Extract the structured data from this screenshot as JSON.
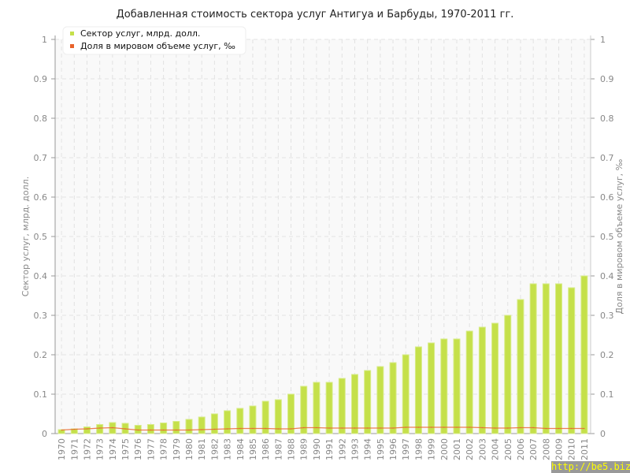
{
  "chart_data": {
    "type": "bar+line",
    "title": "Добавленная стоимость сектора услуг Антигуа и Барбуды, 1970-2011 гг.",
    "ylabel": "Сектор услуг, млрд. долл.",
    "y2label": "Доля в мировом объеме услуг, ‰",
    "ylim": [
      0,
      1
    ],
    "y2lim": [
      0,
      1
    ],
    "yticks": [
      "0",
      "0.1",
      "0.2",
      "0.3",
      "0.4",
      "0.5",
      "0.6",
      "0.7",
      "0.8",
      "0.9",
      "1"
    ],
    "grid": true,
    "legend": "top-left",
    "colors": {
      "bars": "#c5e04a",
      "line": "#e8622a"
    },
    "categories": [
      "1970",
      "1971",
      "1972",
      "1973",
      "1974",
      "1975",
      "1976",
      "1977",
      "1978",
      "1979",
      "1980",
      "1981",
      "1982",
      "1983",
      "1984",
      "1985",
      "1986",
      "1987",
      "1988",
      "1989",
      "1990",
      "1991",
      "1992",
      "1993",
      "1994",
      "1995",
      "1996",
      "1997",
      "1998",
      "1999",
      "2000",
      "2001",
      "2002",
      "2003",
      "2004",
      "2005",
      "2006",
      "2007",
      "2008",
      "2009",
      "2010",
      "2011"
    ],
    "series": [
      {
        "name": "Сектор услуг, млрд. долл.",
        "type": "bar",
        "values": [
          0.01,
          0.012,
          0.017,
          0.023,
          0.028,
          0.026,
          0.021,
          0.023,
          0.027,
          0.031,
          0.036,
          0.042,
          0.05,
          0.058,
          0.064,
          0.07,
          0.082,
          0.086,
          0.1,
          0.12,
          0.13,
          0.13,
          0.14,
          0.15,
          0.16,
          0.17,
          0.18,
          0.2,
          0.22,
          0.23,
          0.24,
          0.24,
          0.26,
          0.27,
          0.28,
          0.3,
          0.34,
          0.38,
          0.38,
          0.38,
          0.37,
          0.4
        ]
      },
      {
        "name": "Доля в мировом объеме услуг, ‰",
        "type": "line",
        "values": [
          0.009,
          0.011,
          0.012,
          0.014,
          0.015,
          0.012,
          0.009,
          0.009,
          0.009,
          0.009,
          0.009,
          0.01,
          0.011,
          0.012,
          0.013,
          0.013,
          0.013,
          0.012,
          0.012,
          0.015,
          0.015,
          0.014,
          0.014,
          0.014,
          0.014,
          0.014,
          0.014,
          0.016,
          0.016,
          0.016,
          0.016,
          0.016,
          0.016,
          0.015,
          0.014,
          0.014,
          0.015,
          0.015,
          0.013,
          0.013,
          0.013,
          0.013
        ]
      }
    ]
  },
  "watermark": "http://be5.biz"
}
